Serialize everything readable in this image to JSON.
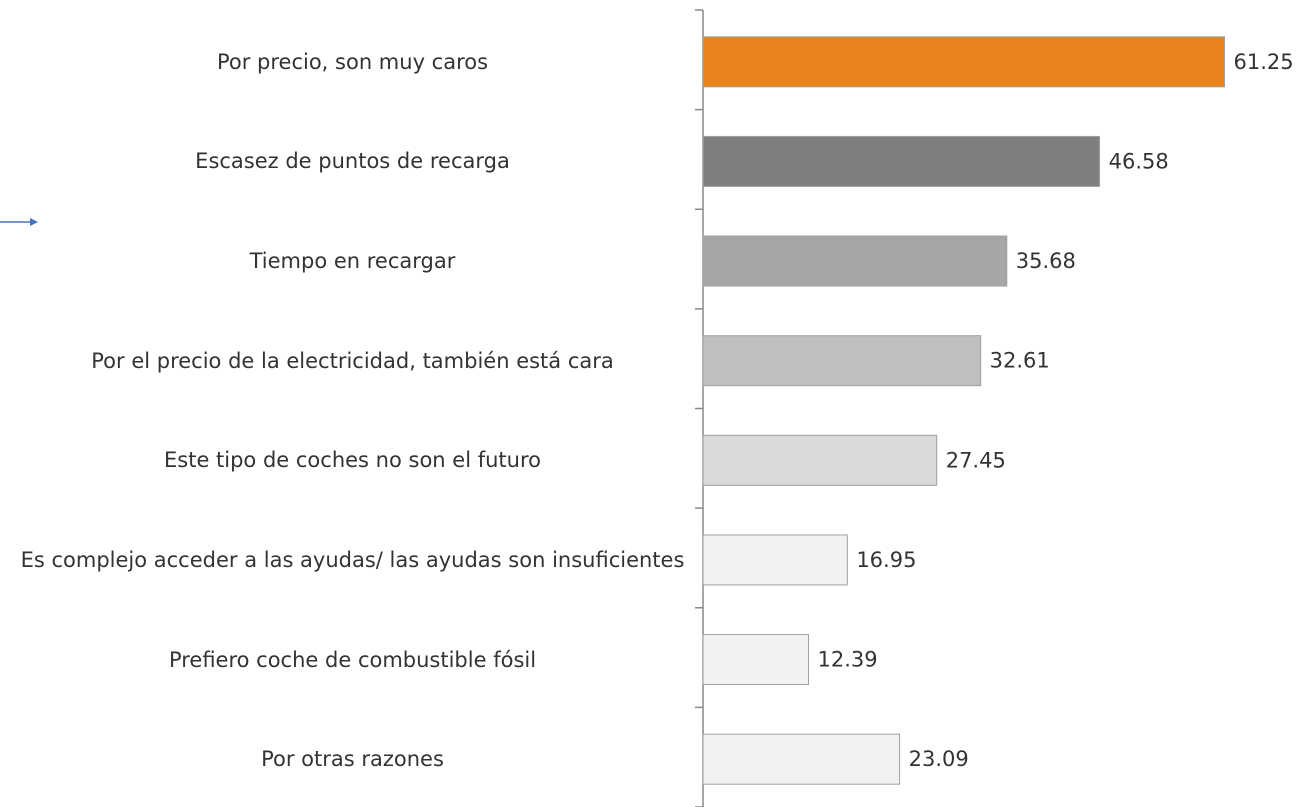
{
  "chart_data": {
    "type": "bar",
    "orientation": "horizontal",
    "categories": [
      "Por precio, son muy caros",
      "Escasez de puntos de recarga",
      "Tiempo en recargar",
      "Por el precio de la electricidad, también está cara",
      "Este tipo de coches no son el futuro",
      "Es complejo acceder a las ayudas/ las ayudas son insuficientes",
      "Prefiero coche de combustible fósil",
      "Por otras razones"
    ],
    "values": [
      61.25,
      46.58,
      35.68,
      32.61,
      27.45,
      16.95,
      12.39,
      23.09
    ],
    "colors": [
      "#e8821a",
      "#7f7f7f",
      "#a6a6a6",
      "#bfbfbf",
      "#d9d9d9",
      "#f2f2f2",
      "#f2f2f2",
      "#f2f2f2"
    ],
    "xlim": [
      0,
      70
    ]
  }
}
